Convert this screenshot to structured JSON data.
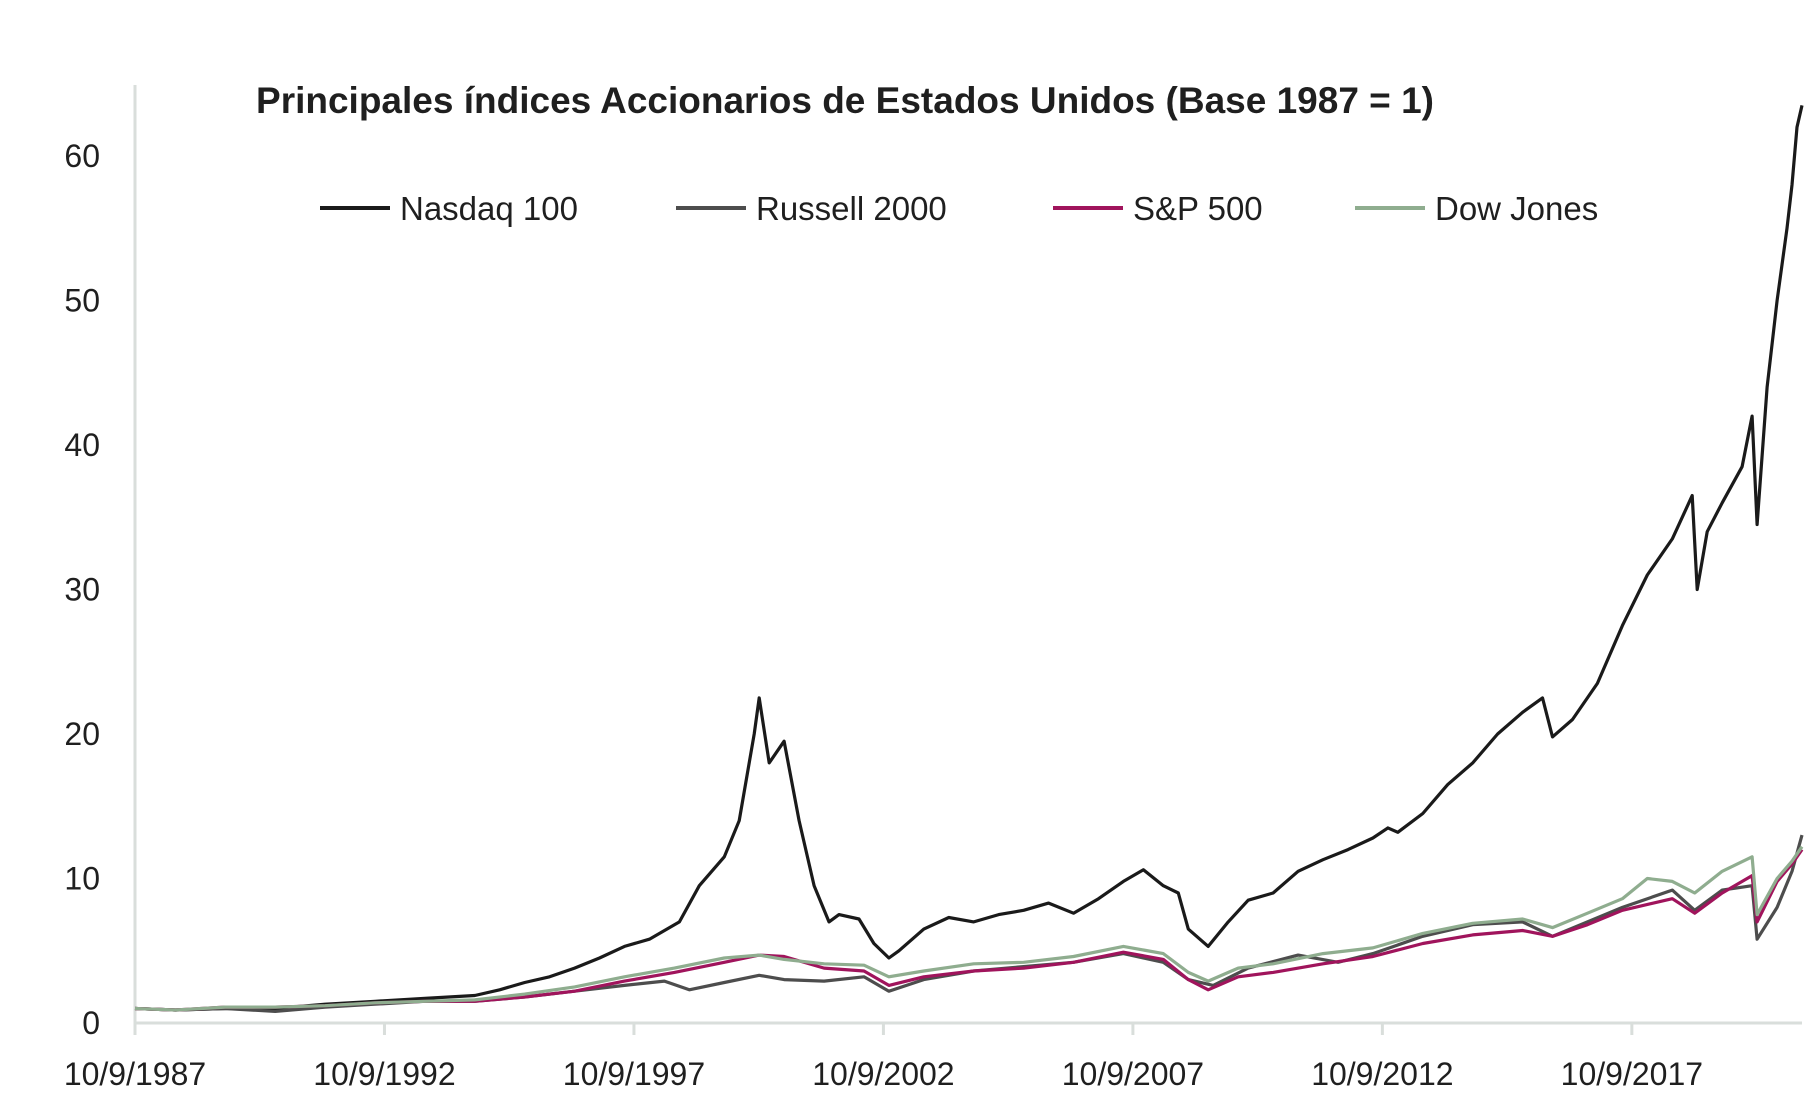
{
  "chart_data": {
    "type": "line",
    "title": "Principales índices Accionarios de Estados Unidos (Base 1987 = 1)",
    "xlabel": "",
    "ylabel": "",
    "ylim": [
      0,
      65
    ],
    "xlim": [
      1987.69,
      2021.1
    ],
    "grid": false,
    "legend_position": "top",
    "yticks": [
      0,
      10,
      20,
      30,
      40,
      50,
      60
    ],
    "xticks": [
      {
        "label": "10/9/1987",
        "x": 1987.69
      },
      {
        "label": "10/9/1992",
        "x": 1992.69
      },
      {
        "label": "10/9/1997",
        "x": 1997.69
      },
      {
        "label": "10/9/2002",
        "x": 2002.69
      },
      {
        "label": "10/9/2007",
        "x": 2007.69
      },
      {
        "label": "10/9/2012",
        "x": 2012.69
      },
      {
        "label": "10/9/2017",
        "x": 2017.69
      }
    ],
    "series": [
      {
        "name": "Nasdaq 100",
        "color": "#1a1a1a",
        "points": [
          [
            1987.69,
            1.0
          ],
          [
            1988.5,
            0.9
          ],
          [
            1989.5,
            1.0
          ],
          [
            1990.5,
            1.0
          ],
          [
            1991.5,
            1.3
          ],
          [
            1992.5,
            1.5
          ],
          [
            1993.5,
            1.7
          ],
          [
            1994.5,
            1.9
          ],
          [
            1995.0,
            2.3
          ],
          [
            1995.5,
            2.8
          ],
          [
            1996.0,
            3.2
          ],
          [
            1996.5,
            3.8
          ],
          [
            1997.0,
            4.5
          ],
          [
            1997.5,
            5.3
          ],
          [
            1998.0,
            5.8
          ],
          [
            1998.6,
            7.0
          ],
          [
            1999.0,
            9.5
          ],
          [
            1999.5,
            11.5
          ],
          [
            1999.8,
            14.0
          ],
          [
            2000.1,
            20.0
          ],
          [
            2000.2,
            22.5
          ],
          [
            2000.4,
            18.0
          ],
          [
            2000.7,
            19.5
          ],
          [
            2001.0,
            14.0
          ],
          [
            2001.3,
            9.5
          ],
          [
            2001.6,
            7.0
          ],
          [
            2001.8,
            7.5
          ],
          [
            2002.2,
            7.2
          ],
          [
            2002.5,
            5.5
          ],
          [
            2002.8,
            4.5
          ],
          [
            2003.0,
            5.0
          ],
          [
            2003.5,
            6.5
          ],
          [
            2004.0,
            7.3
          ],
          [
            2004.5,
            7.0
          ],
          [
            2005.0,
            7.5
          ],
          [
            2005.5,
            7.8
          ],
          [
            2006.0,
            8.3
          ],
          [
            2006.5,
            7.6
          ],
          [
            2007.0,
            8.6
          ],
          [
            2007.5,
            9.8
          ],
          [
            2007.9,
            10.6
          ],
          [
            2008.3,
            9.5
          ],
          [
            2008.6,
            9.0
          ],
          [
            2008.8,
            6.5
          ],
          [
            2009.2,
            5.3
          ],
          [
            2009.6,
            7.0
          ],
          [
            2010.0,
            8.5
          ],
          [
            2010.5,
            9.0
          ],
          [
            2011.0,
            10.5
          ],
          [
            2011.5,
            11.3
          ],
          [
            2012.0,
            12.0
          ],
          [
            2012.5,
            12.8
          ],
          [
            2012.8,
            13.5
          ],
          [
            2013.0,
            13.2
          ],
          [
            2013.5,
            14.5
          ],
          [
            2014.0,
            16.5
          ],
          [
            2014.5,
            18.0
          ],
          [
            2015.0,
            20.0
          ],
          [
            2015.5,
            21.5
          ],
          [
            2015.9,
            22.5
          ],
          [
            2016.1,
            19.8
          ],
          [
            2016.5,
            21.0
          ],
          [
            2017.0,
            23.5
          ],
          [
            2017.5,
            27.5
          ],
          [
            2018.0,
            31.0
          ],
          [
            2018.5,
            33.5
          ],
          [
            2018.9,
            36.5
          ],
          [
            2019.0,
            30.0
          ],
          [
            2019.2,
            34.0
          ],
          [
            2019.5,
            36.0
          ],
          [
            2019.9,
            38.5
          ],
          [
            2020.1,
            42.0
          ],
          [
            2020.2,
            34.5
          ],
          [
            2020.4,
            44.0
          ],
          [
            2020.6,
            50.0
          ],
          [
            2020.8,
            55.0
          ],
          [
            2020.9,
            58.0
          ],
          [
            2021.0,
            62.0
          ],
          [
            2021.1,
            63.5
          ]
        ]
      },
      {
        "name": "Russell 2000",
        "color": "#4d4d4d",
        "points": [
          [
            1987.69,
            1.0
          ],
          [
            1988.5,
            0.9
          ],
          [
            1989.5,
            1.0
          ],
          [
            1990.5,
            0.8
          ],
          [
            1991.5,
            1.1
          ],
          [
            1992.5,
            1.3
          ],
          [
            1993.5,
            1.5
          ],
          [
            1994.5,
            1.5
          ],
          [
            1995.5,
            1.8
          ],
          [
            1996.5,
            2.2
          ],
          [
            1997.5,
            2.6
          ],
          [
            1998.3,
            2.9
          ],
          [
            1998.8,
            2.3
          ],
          [
            1999.5,
            2.8
          ],
          [
            2000.2,
            3.3
          ],
          [
            2000.7,
            3.0
          ],
          [
            2001.5,
            2.9
          ],
          [
            2002.3,
            3.2
          ],
          [
            2002.8,
            2.2
          ],
          [
            2003.5,
            3.0
          ],
          [
            2004.5,
            3.6
          ],
          [
            2005.5,
            3.9
          ],
          [
            2006.5,
            4.2
          ],
          [
            2007.5,
            4.8
          ],
          [
            2008.3,
            4.2
          ],
          [
            2008.8,
            3.0
          ],
          [
            2009.3,
            2.6
          ],
          [
            2010.0,
            3.8
          ],
          [
            2011.0,
            4.7
          ],
          [
            2011.8,
            4.2
          ],
          [
            2012.5,
            4.8
          ],
          [
            2013.5,
            6.0
          ],
          [
            2014.5,
            6.8
          ],
          [
            2015.5,
            7.0
          ],
          [
            2016.1,
            6.0
          ],
          [
            2016.8,
            7.0
          ],
          [
            2017.5,
            8.0
          ],
          [
            2018.5,
            9.2
          ],
          [
            2018.95,
            7.8
          ],
          [
            2019.5,
            9.2
          ],
          [
            2020.1,
            9.5
          ],
          [
            2020.2,
            5.8
          ],
          [
            2020.6,
            8.0
          ],
          [
            2020.9,
            10.5
          ],
          [
            2021.1,
            13.0
          ]
        ]
      },
      {
        "name": "S&P 500",
        "color": "#a0145c",
        "points": [
          [
            1987.69,
            1.0
          ],
          [
            1988.5,
            0.9
          ],
          [
            1989.5,
            1.1
          ],
          [
            1990.5,
            1.1
          ],
          [
            1991.5,
            1.2
          ],
          [
            1992.5,
            1.4
          ],
          [
            1993.5,
            1.5
          ],
          [
            1994.5,
            1.5
          ],
          [
            1995.5,
            1.8
          ],
          [
            1996.5,
            2.2
          ],
          [
            1997.5,
            2.9
          ],
          [
            1998.5,
            3.5
          ],
          [
            1999.5,
            4.2
          ],
          [
            2000.2,
            4.7
          ],
          [
            2000.7,
            4.6
          ],
          [
            2001.5,
            3.8
          ],
          [
            2002.3,
            3.6
          ],
          [
            2002.8,
            2.6
          ],
          [
            2003.5,
            3.2
          ],
          [
            2004.5,
            3.6
          ],
          [
            2005.5,
            3.8
          ],
          [
            2006.5,
            4.2
          ],
          [
            2007.5,
            4.9
          ],
          [
            2008.3,
            4.4
          ],
          [
            2008.8,
            3.0
          ],
          [
            2009.2,
            2.3
          ],
          [
            2009.8,
            3.2
          ],
          [
            2010.5,
            3.5
          ],
          [
            2011.5,
            4.1
          ],
          [
            2012.5,
            4.6
          ],
          [
            2013.5,
            5.5
          ],
          [
            2014.5,
            6.1
          ],
          [
            2015.5,
            6.4
          ],
          [
            2016.1,
            6.0
          ],
          [
            2016.8,
            6.8
          ],
          [
            2017.5,
            7.8
          ],
          [
            2018.5,
            8.6
          ],
          [
            2018.95,
            7.6
          ],
          [
            2019.5,
            9.0
          ],
          [
            2020.1,
            10.2
          ],
          [
            2020.2,
            7.0
          ],
          [
            2020.6,
            9.8
          ],
          [
            2020.9,
            11.0
          ],
          [
            2021.1,
            12.0
          ]
        ]
      },
      {
        "name": "Dow Jones",
        "color": "#8fad8f",
        "points": [
          [
            1987.69,
            1.0
          ],
          [
            1988.5,
            0.9
          ],
          [
            1989.5,
            1.1
          ],
          [
            1990.5,
            1.1
          ],
          [
            1991.5,
            1.2
          ],
          [
            1992.5,
            1.4
          ],
          [
            1993.5,
            1.5
          ],
          [
            1994.5,
            1.6
          ],
          [
            1995.5,
            2.0
          ],
          [
            1996.5,
            2.5
          ],
          [
            1997.5,
            3.2
          ],
          [
            1998.5,
            3.8
          ],
          [
            1999.5,
            4.5
          ],
          [
            2000.2,
            4.7
          ],
          [
            2000.7,
            4.4
          ],
          [
            2001.5,
            4.1
          ],
          [
            2002.3,
            4.0
          ],
          [
            2002.8,
            3.2
          ],
          [
            2003.5,
            3.6
          ],
          [
            2004.5,
            4.1
          ],
          [
            2005.5,
            4.2
          ],
          [
            2006.5,
            4.6
          ],
          [
            2007.5,
            5.3
          ],
          [
            2008.3,
            4.8
          ],
          [
            2008.8,
            3.5
          ],
          [
            2009.2,
            2.9
          ],
          [
            2009.8,
            3.8
          ],
          [
            2010.5,
            4.1
          ],
          [
            2011.5,
            4.8
          ],
          [
            2012.5,
            5.2
          ],
          [
            2013.5,
            6.2
          ],
          [
            2014.5,
            6.9
          ],
          [
            2015.5,
            7.2
          ],
          [
            2016.1,
            6.6
          ],
          [
            2016.8,
            7.6
          ],
          [
            2017.5,
            8.6
          ],
          [
            2018.0,
            10.0
          ],
          [
            2018.5,
            9.8
          ],
          [
            2018.95,
            9.0
          ],
          [
            2019.5,
            10.5
          ],
          [
            2020.1,
            11.5
          ],
          [
            2020.2,
            7.5
          ],
          [
            2020.6,
            10.0
          ],
          [
            2020.9,
            11.2
          ],
          [
            2021.1,
            12.2
          ]
        ]
      }
    ]
  }
}
